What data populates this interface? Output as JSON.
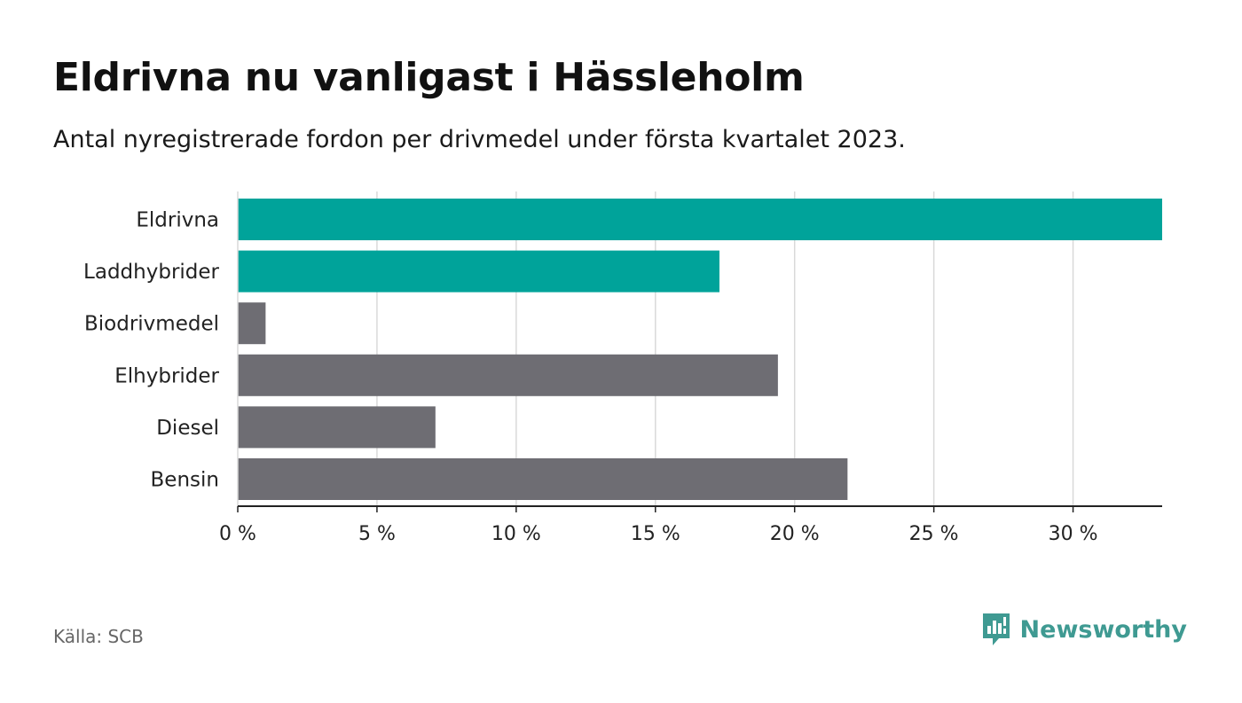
{
  "header": {
    "title": "Eldrivna nu vanligast i Hässleholm",
    "subtitle": "Antal nyregistrerade fordon per drivmedel under första kvartalet 2023."
  },
  "footer": {
    "source": "Källa: SCB",
    "brand": "Newsworthy",
    "brand_icon": "newsworthy-logo-icon",
    "brand_color": "#3f9a92"
  },
  "chart_data": {
    "type": "bar",
    "orientation": "horizontal",
    "categories": [
      "Eldrivna",
      "Laddhybrider",
      "Biodrivmedel",
      "Elhybrider",
      "Diesel",
      "Bensin"
    ],
    "values": [
      33.2,
      17.3,
      1.0,
      19.4,
      7.1,
      21.9
    ],
    "highlight": [
      true,
      true,
      false,
      false,
      false,
      false
    ],
    "colors": {
      "highlight": "#00a39a",
      "default": "#6e6d73",
      "grid": "#d9d9d9",
      "axis": "#222222"
    },
    "xlim": [
      0,
      33.2
    ],
    "xticks": [
      0,
      5,
      10,
      15,
      20,
      25,
      30
    ],
    "xtick_labels": [
      "0 %",
      "5 %",
      "10 %",
      "15 %",
      "20 %",
      "25 %",
      "30 %"
    ],
    "grid": "vertical"
  }
}
